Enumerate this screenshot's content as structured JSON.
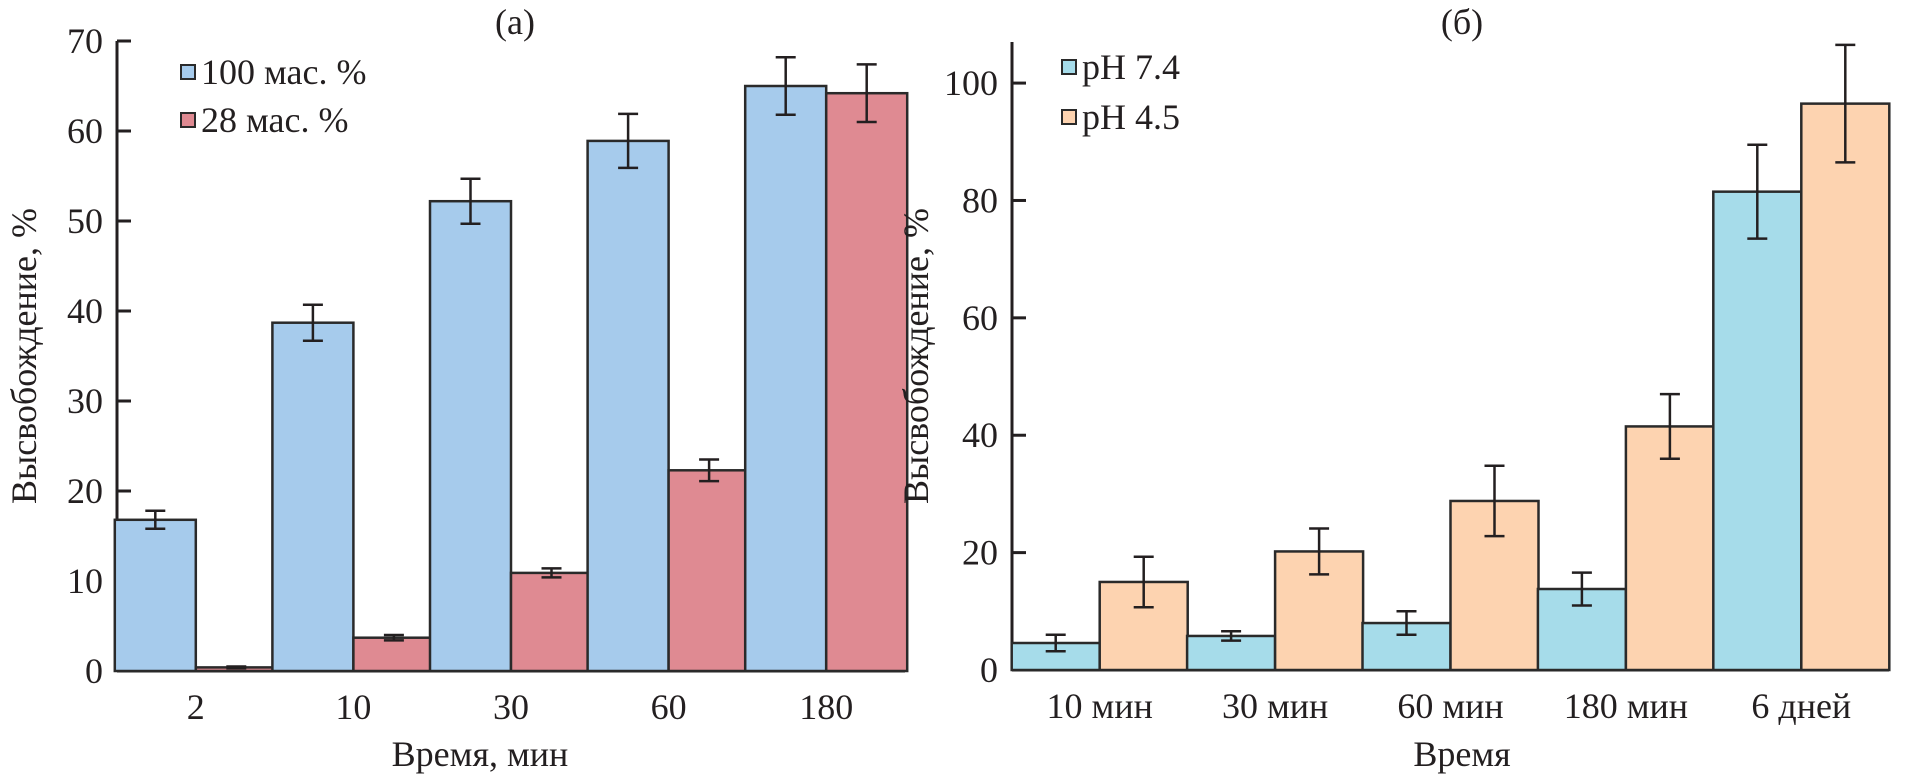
{
  "chart_data": [
    {
      "type": "bar",
      "panel": "a",
      "title": "(a)",
      "xlabel": "Время, мин",
      "ylabel": "Высвобождение, %",
      "ylim": [
        0,
        70
      ],
      "yticks": [
        0,
        10,
        20,
        30,
        40,
        50,
        60,
        70
      ],
      "categories": [
        "2",
        "10",
        "30",
        "60",
        "180"
      ],
      "legend_position": "top-left",
      "series": [
        {
          "name": "100 мас. %",
          "color": "#a6cbec",
          "values": [
            16.8,
            38.7,
            52.2,
            58.9,
            65.0
          ],
          "errors": [
            1.0,
            2.0,
            2.5,
            3.0,
            3.2
          ]
        },
        {
          "name": "28 мас. %",
          "color": "#df8a92",
          "values": [
            0.4,
            3.7,
            10.9,
            22.3,
            64.2
          ],
          "errors": [
            0.1,
            0.3,
            0.5,
            1.2,
            3.2
          ]
        }
      ]
    },
    {
      "type": "bar",
      "panel": "b",
      "title": "(б)",
      "xlabel": "Время",
      "ylabel": "Высвобождение, %",
      "ylim": [
        0,
        107
      ],
      "yticks": [
        0,
        20,
        40,
        60,
        80,
        100
      ],
      "categories": [
        "10 мин",
        "30 мин",
        "60 мин",
        "180 мин",
        "6 дней"
      ],
      "legend_position": "top-left",
      "series": [
        {
          "name": "pH 7.4",
          "color": "#a6dcea",
          "values": [
            4.6,
            5.8,
            8.0,
            13.8,
            81.5
          ],
          "errors": [
            1.4,
            0.8,
            2.0,
            2.8,
            8.0
          ]
        },
        {
          "name": "pH 4.5",
          "color": "#fdd3b0",
          "values": [
            15.0,
            20.2,
            28.8,
            41.5,
            96.5
          ],
          "errors": [
            4.3,
            3.9,
            6.0,
            5.5,
            10.0
          ]
        }
      ]
    }
  ]
}
